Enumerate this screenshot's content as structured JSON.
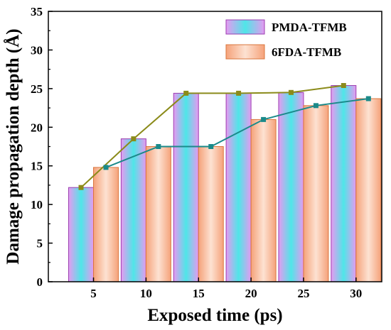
{
  "chart_data": {
    "type": "bar",
    "xlabel": "Exposed time (ps)",
    "ylabel": "Damage propagation depth (Å)",
    "categories": [
      "5",
      "10",
      "15",
      "20",
      "25",
      "30"
    ],
    "ylim": [
      0,
      35
    ],
    "yticks": [
      0,
      5,
      10,
      15,
      20,
      25,
      30,
      35
    ],
    "grid": false,
    "legend_position": "top-right",
    "series": [
      {
        "name": "PMDA-TFMB",
        "values": [
          12.2,
          18.5,
          24.4,
          24.4,
          24.5,
          25.4
        ],
        "fill_center": "#4fe6e8",
        "fill_edge": "#e59af0",
        "stroke": "#9a3fb0",
        "line_color": "#8b8b1a"
      },
      {
        "name": "6FDA-TFMB",
        "values": [
          14.8,
          17.5,
          17.5,
          21.0,
          22.8,
          23.7
        ],
        "fill_center": "#fde2d2",
        "fill_edge": "#f5a27a",
        "stroke": "#d9773f",
        "line_color": "#1a8a8a"
      }
    ]
  }
}
